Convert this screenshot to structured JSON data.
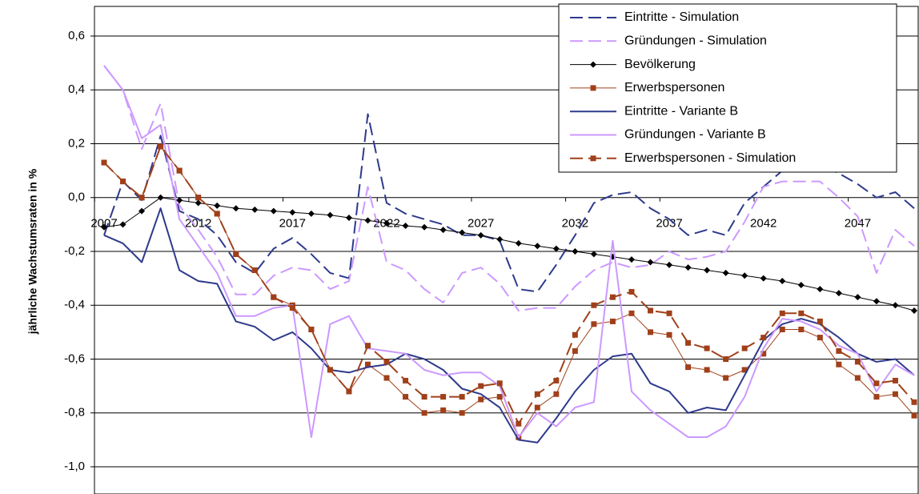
{
  "chart_data": {
    "type": "line",
    "y_label": "jährliche Wachstumsraten in %",
    "categories": [
      "2007",
      null,
      null,
      null,
      null,
      "2012",
      null,
      null,
      null,
      null,
      "2017",
      null,
      null,
      null,
      null,
      "2022",
      null,
      null,
      null,
      null,
      "2027",
      null,
      null,
      null,
      null,
      "2032",
      null,
      null,
      null,
      null,
      "2037",
      null,
      null,
      null,
      null,
      "2042",
      null,
      null,
      null,
      null,
      "2047",
      null,
      null,
      null
    ],
    "ylim": [
      -1.0,
      0.6
    ],
    "yticks": [
      {
        "value": 0.6,
        "label": "0,6"
      },
      {
        "value": 0.4,
        "label": "0,4"
      },
      {
        "value": 0.2,
        "label": "0,2"
      },
      {
        "value": 0.0,
        "label": "0,0"
      },
      {
        "value": -0.2,
        "label": "-0,2"
      },
      {
        "value": -0.4,
        "label": "-0,4"
      },
      {
        "value": -0.6,
        "label": "-0,6"
      },
      {
        "value": -0.8,
        "label": "-0,8"
      },
      {
        "value": -1.0,
        "label": "-1,0"
      }
    ],
    "grid": true,
    "legend": "upper right",
    "series": [
      {
        "name": "Eintritte - Simulation",
        "color": "#2e3a8c",
        "dash": true,
        "width": 2,
        "values": [
          -0.14,
          0.06,
          -0.01,
          0.23,
          -0.05,
          -0.08,
          -0.14,
          -0.24,
          -0.28,
          -0.19,
          -0.15,
          -0.21,
          -0.28,
          -0.3,
          0.31,
          -0.02,
          -0.06,
          -0.08,
          -0.1,
          -0.14,
          -0.14,
          -0.16,
          -0.34,
          -0.35,
          -0.25,
          -0.14,
          -0.02,
          0.01,
          0.02,
          -0.04,
          -0.08,
          -0.14,
          -0.12,
          -0.14,
          -0.02,
          0.04,
          0.1,
          0.14,
          0.12,
          0.09,
          0.05,
          0.0,
          0.02,
          -0.04
        ]
      },
      {
        "name": "Gründungen - Simulation",
        "color": "#cc99ff",
        "dash": true,
        "width": 2,
        "values": [
          0.49,
          0.4,
          0.18,
          0.35,
          -0.03,
          -0.12,
          -0.22,
          -0.36,
          -0.36,
          -0.29,
          -0.26,
          -0.27,
          -0.34,
          -0.31,
          0.04,
          -0.24,
          -0.27,
          -0.34,
          -0.39,
          -0.28,
          -0.26,
          -0.32,
          -0.42,
          -0.41,
          -0.41,
          -0.33,
          -0.27,
          -0.24,
          -0.26,
          -0.25,
          -0.2,
          -0.23,
          -0.22,
          -0.2,
          -0.09,
          0.04,
          0.06,
          0.06,
          0.06,
          0.0,
          -0.07,
          -0.28,
          -0.12,
          -0.18
        ]
      },
      {
        "name": "Bevölkerung",
        "color": "#000000",
        "dash": false,
        "width": 1,
        "marker": "diamond",
        "values": [
          -0.11,
          -0.1,
          -0.05,
          0.0,
          -0.01,
          -0.02,
          -0.03,
          -0.04,
          -0.045,
          -0.05,
          -0.055,
          -0.06,
          -0.065,
          -0.075,
          -0.085,
          -0.095,
          -0.105,
          -0.11,
          -0.12,
          -0.13,
          -0.14,
          -0.155,
          -0.17,
          -0.18,
          -0.19,
          -0.2,
          -0.21,
          -0.22,
          -0.23,
          -0.24,
          -0.25,
          -0.26,
          -0.27,
          -0.28,
          -0.29,
          -0.3,
          -0.31,
          -0.325,
          -0.34,
          -0.355,
          -0.37,
          -0.385,
          -0.4,
          -0.42
        ]
      },
      {
        "name": "Erwerbspersonen",
        "color": "#a0401a",
        "dash": false,
        "width": 1,
        "marker": "square",
        "values": [
          0.13,
          0.06,
          0.0,
          0.19,
          0.1,
          0.0,
          -0.06,
          -0.21,
          -0.27,
          -0.37,
          -0.4,
          -0.49,
          -0.64,
          -0.72,
          -0.62,
          -0.67,
          -0.74,
          -0.8,
          -0.79,
          -0.8,
          -0.75,
          -0.74,
          -0.89,
          -0.78,
          -0.73,
          -0.57,
          -0.47,
          -0.46,
          -0.43,
          -0.5,
          -0.51,
          -0.63,
          -0.64,
          -0.67,
          -0.64,
          -0.58,
          -0.49,
          -0.49,
          -0.52,
          -0.62,
          -0.67,
          -0.74,
          -0.73,
          -0.81
        ]
      },
      {
        "name": "Eintritte - Variante B",
        "color": "#2e3a8c",
        "dash": false,
        "width": 2,
        "values": [
          -0.14,
          -0.17,
          -0.24,
          -0.04,
          -0.27,
          -0.31,
          -0.32,
          -0.46,
          -0.48,
          -0.53,
          -0.5,
          -0.56,
          -0.64,
          -0.65,
          -0.63,
          -0.62,
          -0.58,
          -0.6,
          -0.64,
          -0.71,
          -0.73,
          -0.78,
          -0.9,
          -0.91,
          -0.82,
          -0.72,
          -0.64,
          -0.59,
          -0.58,
          -0.69,
          -0.72,
          -0.8,
          -0.78,
          -0.79,
          -0.66,
          -0.53,
          -0.47,
          -0.45,
          -0.47,
          -0.52,
          -0.58,
          -0.61,
          -0.6,
          -0.66
        ]
      },
      {
        "name": "Gründungen - Variante B",
        "color": "#cc99ff",
        "dash": false,
        "width": 2,
        "values": [
          0.49,
          0.4,
          0.22,
          0.27,
          -0.08,
          -0.18,
          -0.28,
          -0.44,
          -0.44,
          -0.41,
          -0.4,
          -0.89,
          -0.47,
          -0.44,
          -0.56,
          -0.57,
          -0.58,
          -0.64,
          -0.66,
          -0.65,
          -0.65,
          -0.7,
          -0.89,
          -0.8,
          -0.85,
          -0.78,
          -0.76,
          -0.16,
          -0.72,
          -0.79,
          -0.84,
          -0.89,
          -0.89,
          -0.85,
          -0.74,
          -0.56,
          -0.45,
          -0.46,
          -0.49,
          -0.55,
          -0.58,
          -0.72,
          -0.62,
          -0.66
        ]
      },
      {
        "name": "Erwerbspersonen - Simulation",
        "color": "#a0401a",
        "dash": true,
        "width": 2,
        "marker": "square",
        "values": [
          0.13,
          0.06,
          0.0,
          0.19,
          0.1,
          0.0,
          -0.06,
          -0.21,
          -0.27,
          -0.37,
          -0.41,
          -0.49,
          -0.64,
          -0.72,
          -0.55,
          -0.61,
          -0.68,
          -0.74,
          -0.74,
          -0.74,
          -0.7,
          -0.69,
          -0.84,
          -0.73,
          -0.68,
          -0.51,
          -0.4,
          -0.37,
          -0.35,
          -0.42,
          -0.43,
          -0.54,
          -0.56,
          -0.6,
          -0.56,
          -0.52,
          -0.43,
          -0.43,
          -0.46,
          -0.57,
          -0.61,
          -0.69,
          -0.68,
          -0.76
        ]
      }
    ]
  }
}
